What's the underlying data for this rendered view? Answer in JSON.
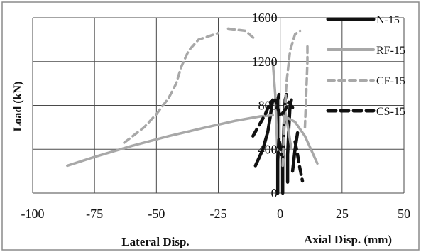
{
  "chart_data": {
    "type": "line",
    "title": "",
    "ylabel": "Load (kN)",
    "xlabel_left": "Lateral Disp.",
    "xlabel_right": "Axial Disp. (mm)",
    "xlim": [
      -100,
      50
    ],
    "ylim": [
      0,
      1600
    ],
    "x_ticks": [
      "-100",
      "-75",
      "-50",
      "-25",
      "0",
      "25",
      "50"
    ],
    "y_ticks": [
      "0",
      "400",
      "800",
      "1200",
      "1600"
    ],
    "grid": true,
    "legend_position": "right",
    "series": [
      {
        "name": "N-15",
        "color": "#111111",
        "style": "solid-thick",
        "segments": [
          [
            [
              -10,
              250
            ],
            [
              -7,
              400
            ],
            [
              -5,
              560
            ],
            [
              -4,
              700
            ],
            [
              -3,
              850
            ]
          ],
          [
            [
              -1,
              0
            ],
            [
              -1,
              250
            ],
            [
              -1,
              550
            ],
            [
              -1,
              850
            ],
            [
              -0.5,
              900
            ]
          ],
          [
            [
              1,
              0
            ],
            [
              1,
              300
            ],
            [
              1.5,
              600
            ],
            [
              2,
              850
            ],
            [
              2.5,
              900
            ]
          ],
          [
            [
              3,
              100
            ],
            [
              3,
              350
            ],
            [
              3.5,
              600
            ],
            [
              4,
              800
            ],
            [
              4.5,
              850
            ]
          ],
          [
            [
              5,
              200
            ],
            [
              6,
              400
            ],
            [
              7,
              550
            ]
          ]
        ]
      },
      {
        "name": "RF-15",
        "color": "#a8a8a8",
        "style": "solid",
        "segments": [
          [
            [
              -86,
              250
            ],
            [
              -75,
              330
            ],
            [
              -60,
              430
            ],
            [
              -45,
              520
            ],
            [
              -30,
              600
            ],
            [
              -18,
              660
            ],
            [
              -8,
              700
            ],
            [
              -3,
              710
            ]
          ],
          [
            [
              0,
              720
            ],
            [
              6,
              650
            ],
            [
              10,
              520
            ],
            [
              13,
              370
            ],
            [
              15,
              270
            ]
          ],
          [
            [
              -3,
              1200
            ],
            [
              -2,
              900
            ],
            [
              -1.5,
              600
            ],
            [
              -1,
              300
            ]
          ],
          [
            [
              2,
              750
            ],
            [
              3.5,
              550
            ],
            [
              4.5,
              400
            ]
          ]
        ]
      },
      {
        "name": "CF-15",
        "color": "#a8a8a8",
        "style": "dashed",
        "segments": [
          [
            [
              -63,
              460
            ],
            [
              -55,
              600
            ],
            [
              -50,
              720
            ],
            [
              -45,
              870
            ],
            [
              -42,
              1000
            ],
            [
              -40,
              1150
            ],
            [
              -37,
              1300
            ],
            [
              -33,
              1400
            ],
            [
              -25,
              1460
            ]
          ],
          [
            [
              -21,
              1500
            ],
            [
              -14,
              1480
            ],
            [
              -10,
              1400
            ]
          ],
          [
            [
              1,
              250
            ],
            [
              1.5,
              600
            ],
            [
              2.5,
              1000
            ],
            [
              4,
              1300
            ],
            [
              6,
              1450
            ],
            [
              8,
              1480
            ]
          ],
          [
            [
              10,
              600
            ],
            [
              10.5,
              900
            ],
            [
              11,
              1200
            ],
            [
              11,
              1370
            ]
          ]
        ]
      },
      {
        "name": "CS-15",
        "color": "#111111",
        "style": "dashed-thick",
        "segments": [
          [
            [
              -11,
              520
            ],
            [
              -8,
              640
            ],
            [
              -6,
              720
            ],
            [
              -4,
              830
            ],
            [
              -2,
              850
            ],
            [
              0,
              700
            ],
            [
              2,
              760
            ],
            [
              3.5,
              830
            ],
            [
              5,
              780
            ]
          ],
          [
            [
              6,
              470
            ],
            [
              7,
              350
            ],
            [
              8,
              220
            ],
            [
              9,
              110
            ]
          ],
          [
            [
              -1,
              300
            ],
            [
              -0.5,
              500
            ],
            [
              0.5,
              350
            ]
          ]
        ]
      }
    ]
  }
}
